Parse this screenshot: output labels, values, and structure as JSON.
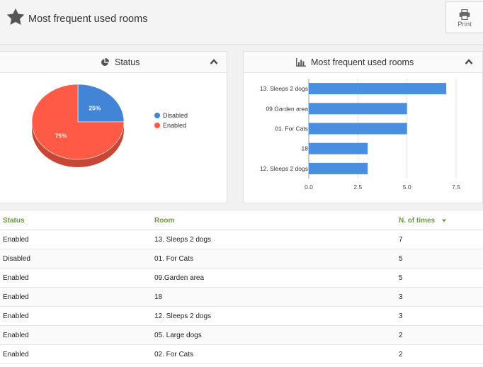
{
  "header": {
    "title": "Most frequent used rooms",
    "print_label": "Print"
  },
  "status_panel": {
    "title": "Status",
    "legend": [
      {
        "label": "Disabled",
        "color": "#4285d6"
      },
      {
        "label": "Enabled",
        "color": "#ff5a45"
      }
    ]
  },
  "rooms_panel": {
    "title": "Most frequent used rooms"
  },
  "chart_data": [
    {
      "type": "pie",
      "title": "Status",
      "labels": [
        "Disabled",
        "Enabled"
      ],
      "values": [
        25,
        75
      ],
      "slice_labels": [
        "25%",
        "75%"
      ],
      "colors": [
        "#4285d6",
        "#ff5a45"
      ],
      "legend": "right"
    },
    {
      "type": "bar",
      "orientation": "horizontal",
      "title": "Most frequent used rooms",
      "categories": [
        "13. Sleeps 2 dogs",
        "09.Garden area",
        "01. For Cats",
        "18",
        "12. Sleeps 2 dogs"
      ],
      "values": [
        7,
        5,
        5,
        3,
        3
      ],
      "xlim": [
        0,
        7.5
      ],
      "x_ticks": [
        "0.0",
        "2.5",
        "5.0",
        "7.5"
      ],
      "grid": true,
      "color": "#4a8ee0"
    }
  ],
  "table": {
    "columns": [
      "Status",
      "Room",
      "N. of times"
    ],
    "sort_icon": "sort-desc-icon",
    "rows": [
      [
        "Enabled",
        "13. Sleeps 2 dogs",
        "7"
      ],
      [
        "Disabled",
        "01. For Cats",
        "5"
      ],
      [
        "Enabled",
        "09.Garden area",
        "5"
      ],
      [
        "Enabled",
        "18",
        "3"
      ],
      [
        "Enabled",
        "12. Sleeps 2 dogs",
        "3"
      ],
      [
        "Enabled",
        "05. Large dogs",
        "2"
      ],
      [
        "Enabled",
        "02. For Cats",
        "2"
      ]
    ]
  }
}
